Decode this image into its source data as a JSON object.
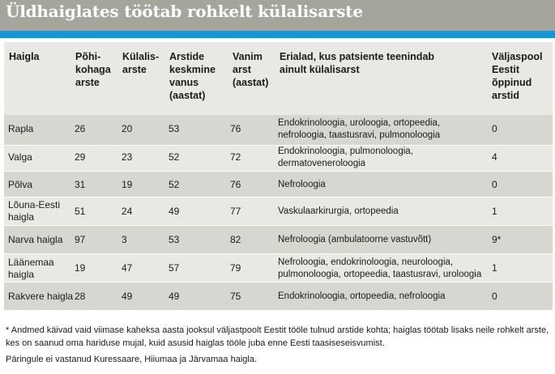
{
  "title": "Üldhaiglates töötab rohkelt külalisarste",
  "colors": {
    "header_bar": "#a5a59d",
    "accent": "#1a95d1",
    "row_light": "#e9e8e4",
    "row_dark": "#d7d6d1"
  },
  "headers": {
    "hospital": "Haigla",
    "primary": "Põhi-\nkohaga\narste",
    "guest": "Külalis-\narste",
    "age": "Arstide\nkeskmine\nvanus\n(aastat)",
    "oldest": "Vanim\narst\n(aastat)",
    "specialties": "Erialad, kus patsiente teenindab\nainult külalisarst",
    "abroad": "Väljaspool\nEestit\nõppinud\narstid"
  },
  "rows": [
    {
      "hospital": "Rapla",
      "primary": "26",
      "guest": "20",
      "age": "53",
      "oldest": "76",
      "specialties": "Endokrinoloogia, uroloogia, ortopeedia,\nnefroloogia, taastusravi, pulmonoloogia",
      "abroad": "0"
    },
    {
      "hospital": "Valga",
      "primary": "29",
      "guest": "23",
      "age": "52",
      "oldest": "72",
      "specialties": "Endokrinoloogia, pulmonoloogia,\ndermatoveneroloogia",
      "abroad": "4"
    },
    {
      "hospital": "Põlva",
      "primary": "31",
      "guest": "19",
      "age": "52",
      "oldest": "76",
      "specialties": "Nefroloogia",
      "abroad": "0"
    },
    {
      "hospital": "Lõuna-Eesti\nhaigla",
      "primary": "51",
      "guest": "24",
      "age": "49",
      "oldest": "77",
      "specialties": "Vaskulaarkirurgia, ortopeedia",
      "abroad": "1"
    },
    {
      "hospital": "Narva haigla",
      "primary": "97",
      "guest": "3",
      "age": "53",
      "oldest": "82",
      "specialties": "Nefroloogia (ambulatoorne vastuvõtt)",
      "abroad": "9*"
    },
    {
      "hospital": "Läänemaa\nhaigla",
      "primary": "19",
      "guest": "47",
      "age": "57",
      "oldest": "79",
      "specialties": "Nefroloogia, endokrinoloogia, neuroloogia,\npulmonoloogia, ortopeedia, taastusravi, uroloogia",
      "abroad": "1"
    },
    {
      "hospital": "Rakvere haigla",
      "primary": "28",
      "guest": "49",
      "age": "49",
      "oldest": "75",
      "specialties": "Endokrinoloogia, ortopeedia, nefroloogia",
      "abroad": "0"
    }
  ],
  "footnote": "* Andmed käivad vaid viimase kaheksa aasta jooksul väljastpoolt Eestit tööle tulnud arstide kohta; haiglas töötab lisaks neile rohkelt arste, kes on saanud oma hariduse mujal, kuid asusid haiglas tööle juba enne Eesti taasiseseisvumist.",
  "note": "Päringule ei vastanud Kuressaare, Hiiumaa ja Järvamaa haigla."
}
